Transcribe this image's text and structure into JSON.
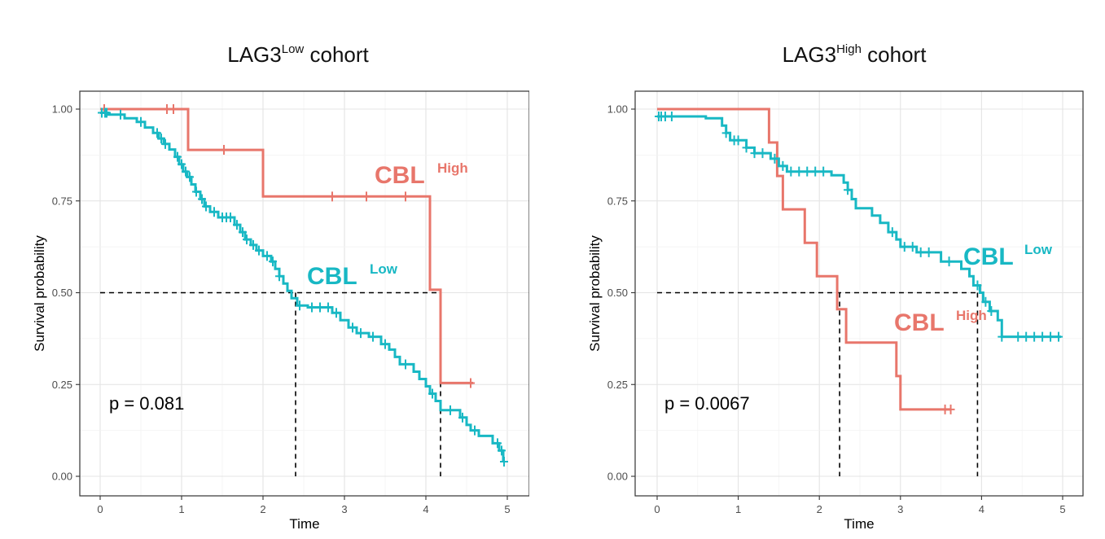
{
  "charts": [
    {
      "title_main": "LAG3",
      "title_sup": "Low",
      "title_rest": " cohort",
      "chart_data": {
        "type": "line",
        "subtype": "kaplan-meier",
        "xlabel": "Time",
        "ylabel": "Survival probability",
        "xlim": [
          0,
          5
        ],
        "ylim": [
          0,
          1
        ],
        "x_ticks": [
          "0",
          "1",
          "2",
          "3",
          "4",
          "5"
        ],
        "y_ticks": [
          "0.00",
          "0.25",
          "0.50",
          "0.75",
          "1.00"
        ],
        "grid": true,
        "pvalue_label": "p = 0.081",
        "median_line_y": 0.5,
        "median_times": [
          2.4,
          4.18
        ],
        "series": [
          {
            "name": "CBL High",
            "label_main": "CBL",
            "label_sup": "High",
            "color": "#E8766B",
            "steps": [
              [
                0,
                1.0
              ],
              [
                1.08,
                1.0
              ],
              [
                1.08,
                0.889
              ],
              [
                2.0,
                0.889
              ],
              [
                2.0,
                0.762
              ],
              [
                4.05,
                0.762
              ],
              [
                4.05,
                0.508
              ],
              [
                4.18,
                0.508
              ],
              [
                4.18,
                0.254
              ],
              [
                4.58,
                0.254
              ]
            ],
            "censor_times": [
              0.05,
              0.82,
              0.9,
              1.52,
              2.85,
              3.27,
              3.75,
              4.55
            ]
          },
          {
            "name": "CBL Low",
            "label_main": "CBL",
            "label_sup": "Low",
            "color": "#18B8C4",
            "steps": [
              [
                0,
                0.99
              ],
              [
                0.1,
                0.99
              ],
              [
                0.1,
                0.985
              ],
              [
                0.3,
                0.985
              ],
              [
                0.3,
                0.975
              ],
              [
                0.45,
                0.975
              ],
              [
                0.45,
                0.965
              ],
              [
                0.55,
                0.965
              ],
              [
                0.55,
                0.95
              ],
              [
                0.65,
                0.95
              ],
              [
                0.65,
                0.935
              ],
              [
                0.72,
                0.935
              ],
              [
                0.72,
                0.92
              ],
              [
                0.78,
                0.92
              ],
              [
                0.78,
                0.905
              ],
              [
                0.85,
                0.905
              ],
              [
                0.85,
                0.89
              ],
              [
                0.92,
                0.89
              ],
              [
                0.92,
                0.87
              ],
              [
                0.97,
                0.87
              ],
              [
                0.97,
                0.85
              ],
              [
                1.02,
                0.85
              ],
              [
                1.02,
                0.83
              ],
              [
                1.07,
                0.83
              ],
              [
                1.07,
                0.815
              ],
              [
                1.12,
                0.815
              ],
              [
                1.12,
                0.795
              ],
              [
                1.17,
                0.795
              ],
              [
                1.17,
                0.775
              ],
              [
                1.23,
                0.775
              ],
              [
                1.23,
                0.755
              ],
              [
                1.28,
                0.755
              ],
              [
                1.28,
                0.735
              ],
              [
                1.35,
                0.735
              ],
              [
                1.35,
                0.72
              ],
              [
                1.45,
                0.72
              ],
              [
                1.45,
                0.705
              ],
              [
                1.65,
                0.705
              ],
              [
                1.65,
                0.685
              ],
              [
                1.72,
                0.685
              ],
              [
                1.72,
                0.665
              ],
              [
                1.78,
                0.665
              ],
              [
                1.78,
                0.645
              ],
              [
                1.85,
                0.645
              ],
              [
                1.85,
                0.63
              ],
              [
                1.92,
                0.63
              ],
              [
                1.92,
                0.615
              ],
              [
                2.0,
                0.615
              ],
              [
                2.0,
                0.6
              ],
              [
                2.1,
                0.6
              ],
              [
                2.1,
                0.585
              ],
              [
                2.15,
                0.585
              ],
              [
                2.15,
                0.565
              ],
              [
                2.2,
                0.565
              ],
              [
                2.2,
                0.545
              ],
              [
                2.25,
                0.545
              ],
              [
                2.25,
                0.525
              ],
              [
                2.3,
                0.525
              ],
              [
                2.3,
                0.505
              ],
              [
                2.35,
                0.505
              ],
              [
                2.35,
                0.485
              ],
              [
                2.42,
                0.485
              ],
              [
                2.42,
                0.465
              ],
              [
                2.55,
                0.465
              ],
              [
                2.55,
                0.46
              ],
              [
                2.85,
                0.46
              ],
              [
                2.85,
                0.445
              ],
              [
                2.95,
                0.445
              ],
              [
                2.95,
                0.425
              ],
              [
                3.05,
                0.425
              ],
              [
                3.05,
                0.405
              ],
              [
                3.15,
                0.405
              ],
              [
                3.15,
                0.39
              ],
              [
                3.3,
                0.39
              ],
              [
                3.3,
                0.38
              ],
              [
                3.45,
                0.38
              ],
              [
                3.45,
                0.36
              ],
              [
                3.55,
                0.36
              ],
              [
                3.55,
                0.345
              ],
              [
                3.62,
                0.345
              ],
              [
                3.62,
                0.325
              ],
              [
                3.68,
                0.325
              ],
              [
                3.68,
                0.305
              ],
              [
                3.85,
                0.305
              ],
              [
                3.85,
                0.285
              ],
              [
                3.92,
                0.285
              ],
              [
                3.92,
                0.265
              ],
              [
                4.0,
                0.265
              ],
              [
                4.0,
                0.245
              ],
              [
                4.05,
                0.245
              ],
              [
                4.05,
                0.225
              ],
              [
                4.12,
                0.225
              ],
              [
                4.12,
                0.205
              ],
              [
                4.18,
                0.205
              ],
              [
                4.18,
                0.18
              ],
              [
                4.42,
                0.18
              ],
              [
                4.42,
                0.16
              ],
              [
                4.5,
                0.16
              ],
              [
                4.5,
                0.14
              ],
              [
                4.55,
                0.14
              ],
              [
                4.55,
                0.125
              ],
              [
                4.65,
                0.125
              ],
              [
                4.65,
                0.11
              ],
              [
                4.82,
                0.11
              ],
              [
                4.82,
                0.09
              ],
              [
                4.9,
                0.09
              ],
              [
                4.9,
                0.07
              ],
              [
                4.95,
                0.07
              ],
              [
                4.95,
                0.04
              ]
            ],
            "censor_times": [
              0.02,
              0.06,
              0.08,
              0.25,
              0.5,
              0.7,
              0.75,
              0.8,
              0.95,
              1.0,
              1.05,
              1.1,
              1.18,
              1.25,
              1.3,
              1.4,
              1.5,
              1.55,
              1.6,
              1.68,
              1.75,
              1.8,
              1.88,
              1.95,
              2.05,
              2.12,
              2.2,
              2.45,
              2.6,
              2.7,
              2.8,
              2.9,
              3.1,
              3.2,
              3.35,
              3.5,
              3.75,
              4.08,
              4.3,
              4.45,
              4.6,
              4.88,
              4.93,
              4.96
            ]
          }
        ]
      }
    },
    {
      "title_main": "LAG3",
      "title_sup": "High",
      "title_rest": " cohort",
      "chart_data": {
        "type": "line",
        "subtype": "kaplan-meier",
        "xlabel": "Time",
        "ylabel": "Survival probability",
        "xlim": [
          0,
          5
        ],
        "ylim": [
          0,
          1
        ],
        "x_ticks": [
          "0",
          "1",
          "2",
          "3",
          "4",
          "5"
        ],
        "y_ticks": [
          "0.00",
          "0.25",
          "0.50",
          "0.75",
          "1.00"
        ],
        "grid": true,
        "pvalue_label": "p = 0.0067",
        "median_line_y": 0.5,
        "median_times": [
          2.25,
          3.95
        ],
        "series": [
          {
            "name": "CBL High",
            "label_main": "CBL",
            "label_sup": "High",
            "color": "#E8766B",
            "steps": [
              [
                0,
                1.0
              ],
              [
                1.38,
                1.0
              ],
              [
                1.38,
                0.909
              ],
              [
                1.48,
                0.909
              ],
              [
                1.48,
                0.818
              ],
              [
                1.55,
                0.818
              ],
              [
                1.55,
                0.727
              ],
              [
                1.82,
                0.727
              ],
              [
                1.82,
                0.636
              ],
              [
                1.97,
                0.636
              ],
              [
                1.97,
                0.545
              ],
              [
                2.22,
                0.545
              ],
              [
                2.22,
                0.455
              ],
              [
                2.33,
                0.455
              ],
              [
                2.33,
                0.364
              ],
              [
                2.95,
                0.364
              ],
              [
                2.95,
                0.273
              ],
              [
                3.0,
                0.273
              ],
              [
                3.0,
                0.182
              ],
              [
                3.62,
                0.182
              ]
            ],
            "censor_times": [
              3.55,
              3.62
            ]
          },
          {
            "name": "CBL Low",
            "label_main": "CBL",
            "label_sup": "Low",
            "color": "#18B8C4",
            "steps": [
              [
                0,
                0.98
              ],
              [
                0.22,
                0.98
              ],
              [
                0.22,
                0.98
              ],
              [
                0.6,
                0.98
              ],
              [
                0.6,
                0.975
              ],
              [
                0.8,
                0.975
              ],
              [
                0.8,
                0.955
              ],
              [
                0.85,
                0.955
              ],
              [
                0.85,
                0.935
              ],
              [
                0.9,
                0.935
              ],
              [
                0.9,
                0.915
              ],
              [
                1.1,
                0.915
              ],
              [
                1.1,
                0.895
              ],
              [
                1.2,
                0.895
              ],
              [
                1.2,
                0.88
              ],
              [
                1.4,
                0.88
              ],
              [
                1.4,
                0.865
              ],
              [
                1.5,
                0.865
              ],
              [
                1.5,
                0.845
              ],
              [
                1.6,
                0.845
              ],
              [
                1.6,
                0.83
              ],
              [
                2.15,
                0.83
              ],
              [
                2.15,
                0.82
              ],
              [
                2.3,
                0.82
              ],
              [
                2.3,
                0.8
              ],
              [
                2.35,
                0.8
              ],
              [
                2.35,
                0.78
              ],
              [
                2.4,
                0.78
              ],
              [
                2.4,
                0.755
              ],
              [
                2.45,
                0.755
              ],
              [
                2.45,
                0.73
              ],
              [
                2.65,
                0.73
              ],
              [
                2.65,
                0.71
              ],
              [
                2.75,
                0.71
              ],
              [
                2.75,
                0.69
              ],
              [
                2.85,
                0.69
              ],
              [
                2.85,
                0.665
              ],
              [
                2.95,
                0.665
              ],
              [
                2.95,
                0.645
              ],
              [
                3.0,
                0.645
              ],
              [
                3.0,
                0.625
              ],
              [
                3.2,
                0.625
              ],
              [
                3.2,
                0.61
              ],
              [
                3.5,
                0.61
              ],
              [
                3.5,
                0.585
              ],
              [
                3.75,
                0.585
              ],
              [
                3.75,
                0.565
              ],
              [
                3.85,
                0.565
              ],
              [
                3.85,
                0.545
              ],
              [
                3.9,
                0.545
              ],
              [
                3.9,
                0.52
              ],
              [
                3.98,
                0.52
              ],
              [
                3.98,
                0.5
              ],
              [
                4.02,
                0.5
              ],
              [
                4.02,
                0.475
              ],
              [
                4.1,
                0.475
              ],
              [
                4.1,
                0.45
              ],
              [
                4.2,
                0.45
              ],
              [
                4.2,
                0.425
              ],
              [
                4.25,
                0.425
              ],
              [
                4.25,
                0.38
              ],
              [
                4.98,
                0.38
              ]
            ],
            "censor_times": [
              0.02,
              0.05,
              0.1,
              0.18,
              0.85,
              0.95,
              1.0,
              1.1,
              1.2,
              1.3,
              1.45,
              1.55,
              1.65,
              1.75,
              1.85,
              1.95,
              2.05,
              2.35,
              2.9,
              3.05,
              3.15,
              3.25,
              3.35,
              3.6,
              3.95,
              4.05,
              4.12,
              4.25,
              4.45,
              4.55,
              4.65,
              4.75,
              4.85,
              4.95
            ]
          }
        ]
      }
    }
  ]
}
